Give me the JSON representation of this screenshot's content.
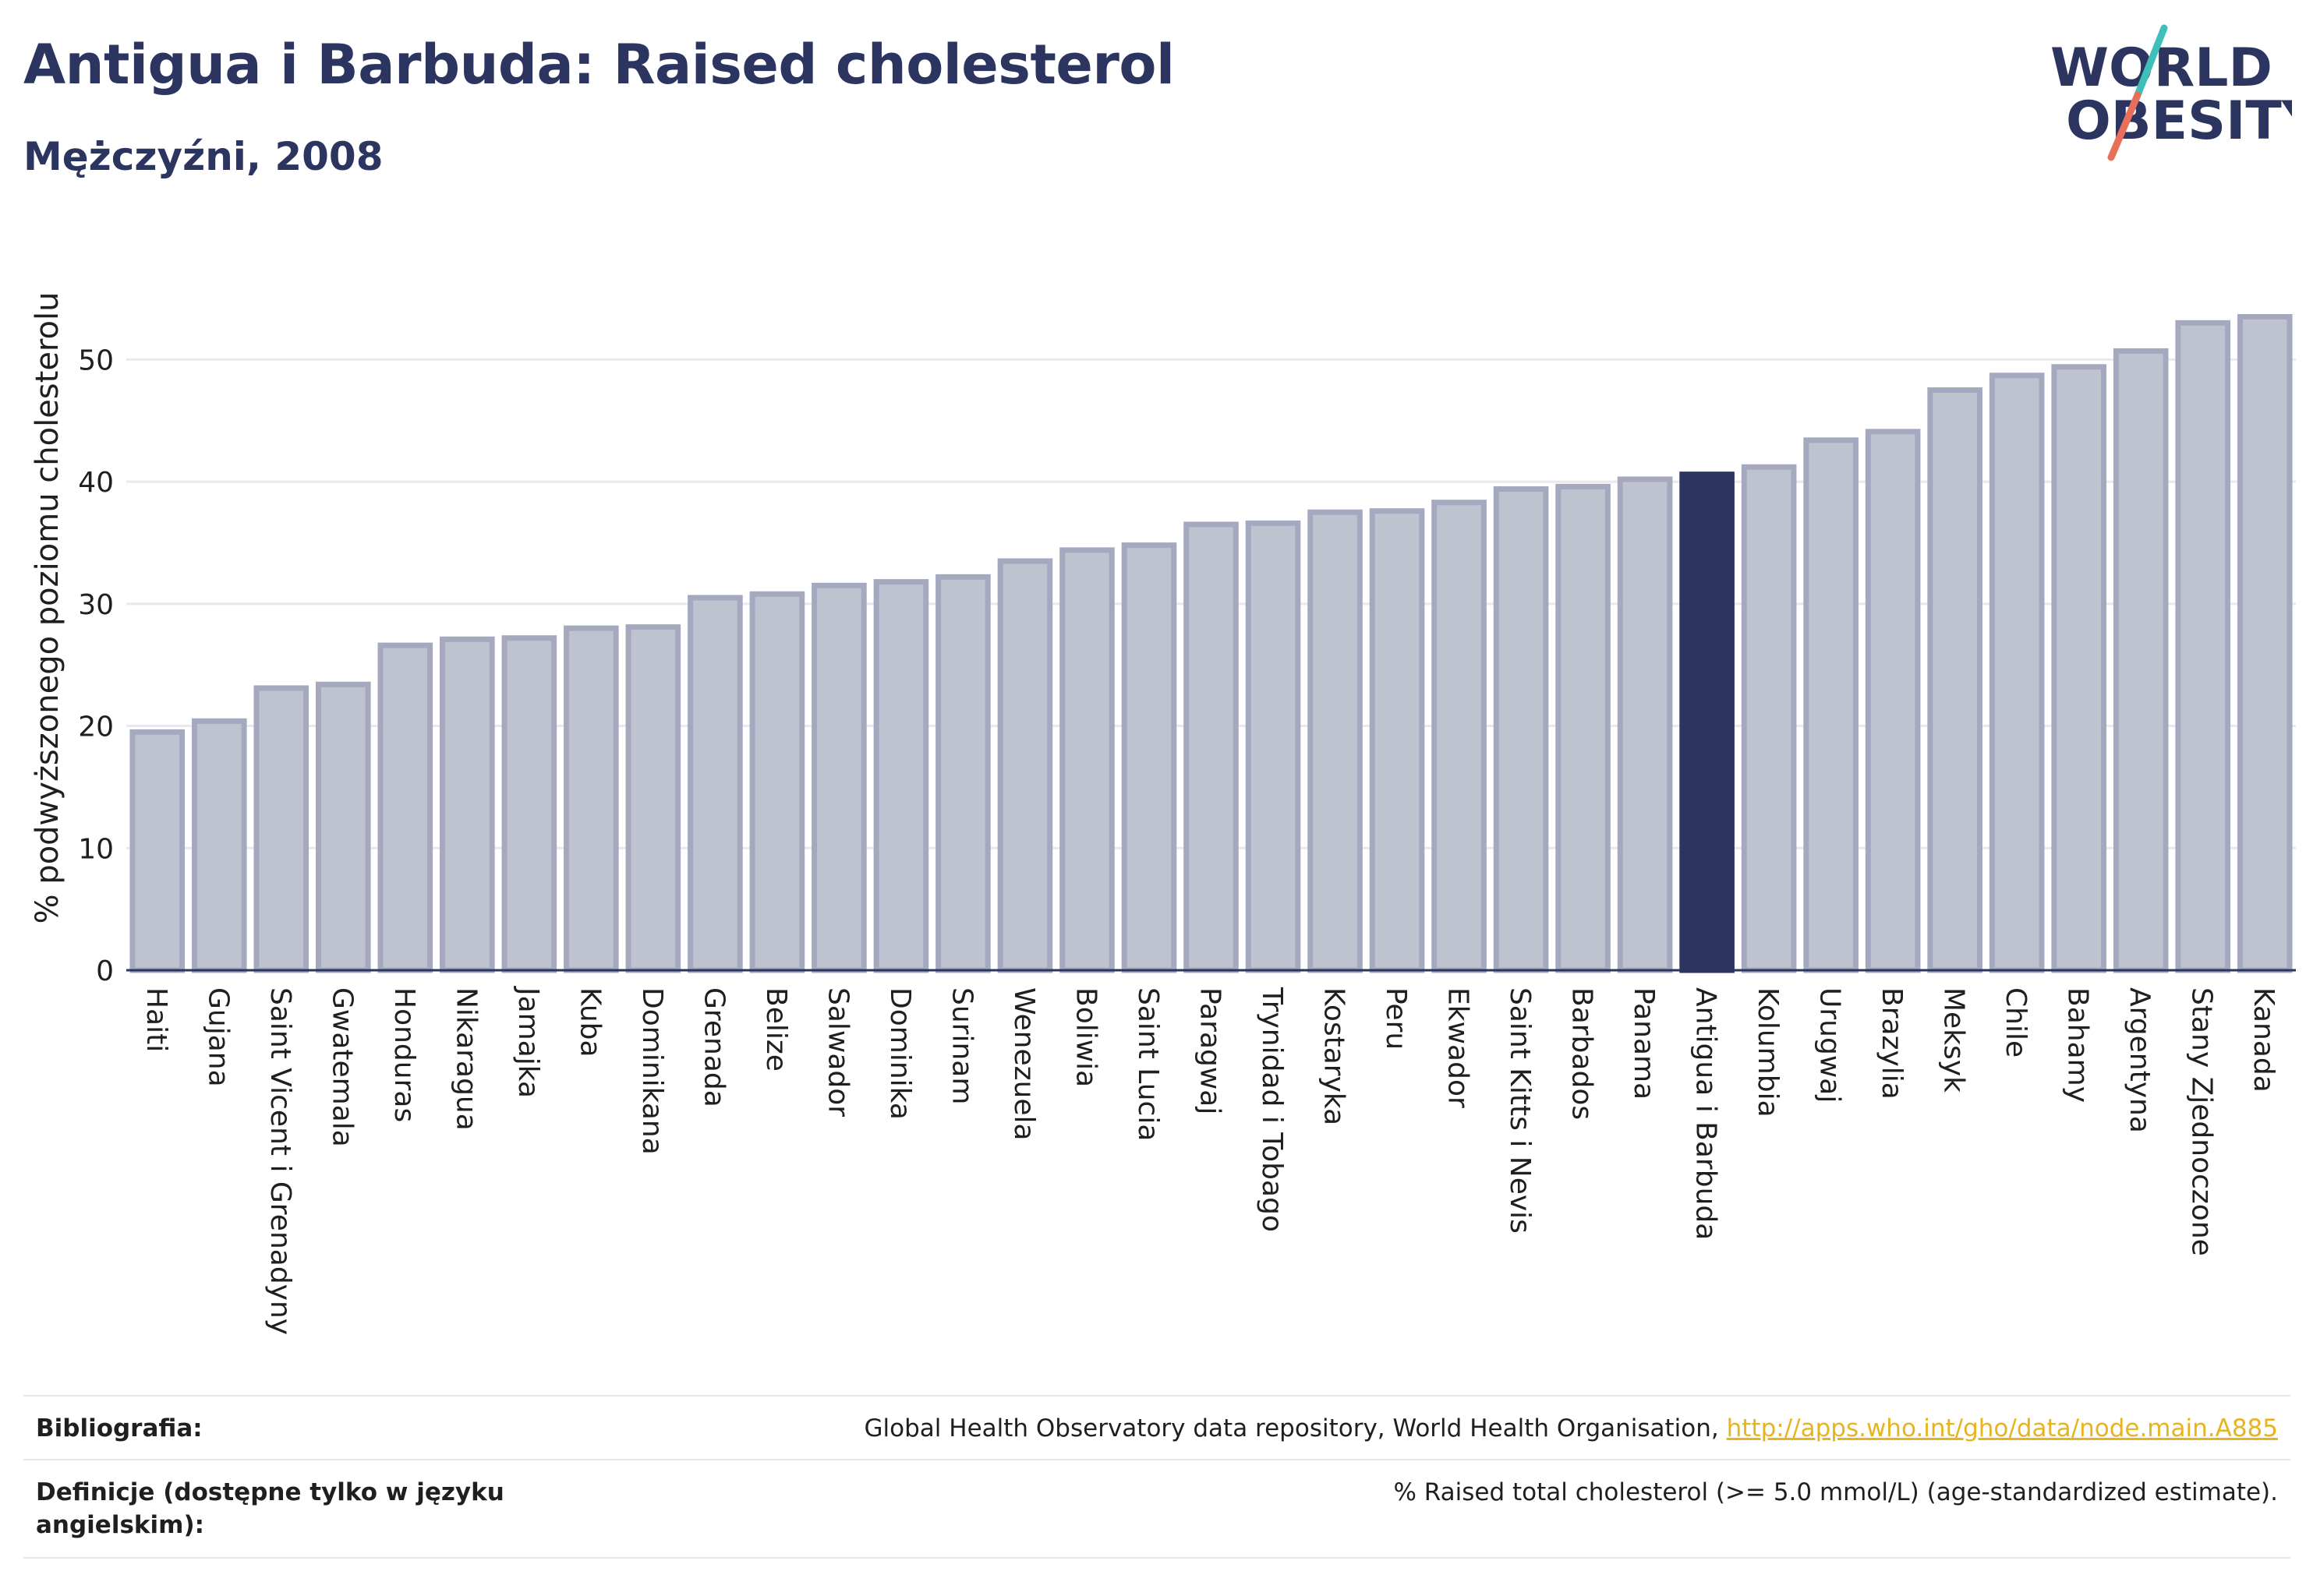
{
  "header": {
    "title": "Antigua i Barbuda: Raised cholesterol",
    "subtitle": "Mężczyźni, 2008"
  },
  "logo": {
    "line1": "WORLD",
    "line2": "OBESITY",
    "colors": {
      "text": "#2b3560",
      "slash_top": "#3fbfb9",
      "slash_bottom": "#e8705a"
    }
  },
  "colors": {
    "bar_fill": "#bfc2cf",
    "bar_stroke": "#a5a9bf",
    "highlight_fill": "#2b3560",
    "gridline": "#e8e8ee",
    "axis": "#2b3560"
  },
  "chart_data": {
    "type": "bar",
    "ylabel": "% podwyższonego poziomu cholesterolu",
    "xlabel": "",
    "ylim": [
      0,
      55
    ],
    "yticks": [
      0,
      10,
      20,
      30,
      40,
      50
    ],
    "grid": true,
    "highlight": "Antigua i Barbuda",
    "categories": [
      "Haiti",
      "Gujana",
      "Saint Vicent i Grenadyny",
      "Gwatemala",
      "Honduras",
      "Nikaragua",
      "Jamajka",
      "Kuba",
      "Dominikana",
      "Grenada",
      "Belize",
      "Salwador",
      "Dominika",
      "Surinam",
      "Wenezuela",
      "Boliwia",
      "Saint Lucia",
      "Paragwaj",
      "Trynidad i Tobago",
      "Kostaryka",
      "Peru",
      "Ekwador",
      "Saint Kitts i Nevis",
      "Barbados",
      "Panama",
      "Antigua i Barbuda",
      "Kolumbia",
      "Urugwaj",
      "Brazylia",
      "Meksyk",
      "Chile",
      "Bahamy",
      "Argentyna",
      "Stany Zjednoczone",
      "Kanada"
    ],
    "values": [
      19.5,
      20.4,
      23.1,
      23.4,
      26.6,
      27.1,
      27.2,
      28.0,
      28.1,
      30.5,
      30.8,
      31.5,
      31.8,
      32.2,
      33.5,
      34.4,
      34.8,
      36.5,
      36.6,
      37.5,
      37.6,
      38.3,
      39.4,
      39.6,
      40.2,
      40.6,
      41.2,
      43.4,
      44.1,
      47.5,
      48.7,
      49.4,
      50.7,
      53.0,
      53.5
    ]
  },
  "footer": {
    "bibliography_label": "Bibliografia:",
    "bibliography_text": "Global Health Observatory data repository, World Health Organisation, ",
    "bibliography_link": "http://apps.who.int/gho/data/node.main.A885",
    "definitions_label": "Definicje (dostępne tylko w języku angielskim):",
    "definitions_text": "% Raised total cholesterol (>= 5.0 mmol/L) (age-standardized estimate)."
  }
}
